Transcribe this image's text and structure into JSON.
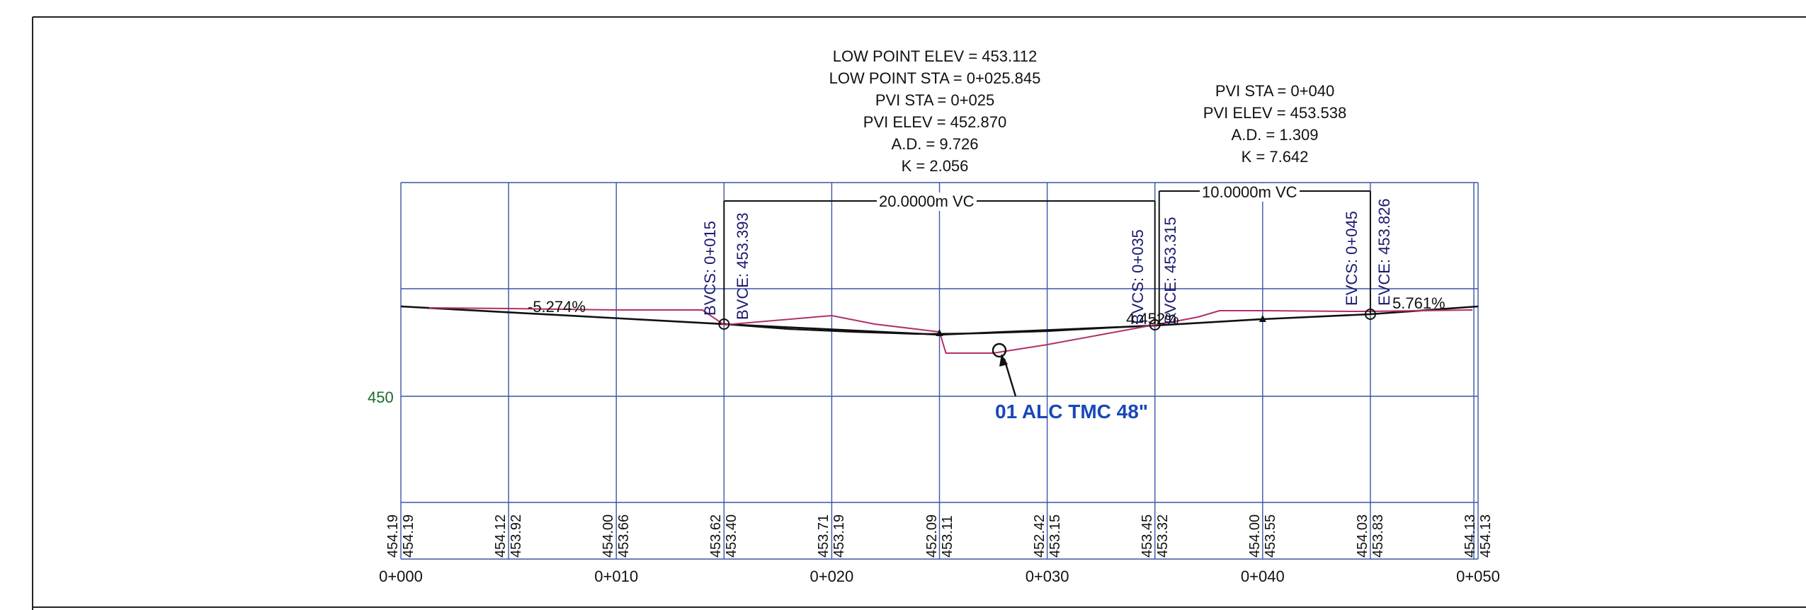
{
  "curve1": {
    "low_point_elev": "LOW POINT ELEV = 453.112",
    "low_point_sta": "LOW POINT STA = 0+025.845",
    "pvi_sta": "PVI STA = 0+025",
    "pvi_elev": "PVI ELEV = 452.870",
    "ad": "A.D. = 9.726",
    "k": "K = 2.056",
    "vc_label": "20.0000m VC",
    "bvcs": "BVCS:  0+015",
    "bvce": "BVCE:  453.393",
    "evcs": "EVCS:  0+035",
    "evce": "EVCE:  453.315"
  },
  "curve2": {
    "pvi_sta": "PVI STA = 0+040",
    "pvi_elev": "PVI ELEV = 453.538",
    "ad": "A.D. = 1.309",
    "k": "K = 7.642",
    "vc_label": "10.0000m VC",
    "bvcs": "BVCS:  0+035",
    "bvce": "BVCE:  453.315",
    "evcs": "EVCS:  0+045",
    "evce": "EVCE:  453.826"
  },
  "grades": {
    "left": "-5.274%",
    "middle": "4.452%",
    "right": "5.761%"
  },
  "y_axis_label": "450",
  "callout": "01 ALC TMC 48\"",
  "stations": [
    {
      "label": "0+000",
      "sta": 0
    },
    {
      "label": "0+010",
      "sta": 10
    },
    {
      "label": "0+020",
      "sta": 20
    },
    {
      "label": "0+030",
      "sta": 30
    },
    {
      "label": "0+040",
      "sta": 40
    },
    {
      "label": "0+050",
      "sta": 50
    }
  ],
  "elevation_pairs": [
    {
      "sta": 0,
      "a": "454.19",
      "b": "454.19"
    },
    {
      "sta": 5,
      "a": "454.12",
      "b": "453.92"
    },
    {
      "sta": 10,
      "a": "454.00",
      "b": "453.66"
    },
    {
      "sta": 15,
      "a": "453.62",
      "b": "453.40"
    },
    {
      "sta": 20,
      "a": "453.71",
      "b": "453.19"
    },
    {
      "sta": 25,
      "a": "452.09",
      "b": "453.11"
    },
    {
      "sta": 30,
      "a": "452.42",
      "b": "453.15"
    },
    {
      "sta": 35,
      "a": "453.45",
      "b": "453.32"
    },
    {
      "sta": 40,
      "a": "454.00",
      "b": "453.55"
    },
    {
      "sta": 45,
      "a": "454.03",
      "b": "453.83"
    },
    {
      "sta": 50,
      "a": "454.13",
      "b": "454.13"
    }
  ],
  "colors": {
    "grid": "#3a55a8",
    "existing_ground": "#b0306a",
    "design_profile": "#111111",
    "callout": "#1848b8",
    "axis_label": "#1d6b2a"
  }
}
